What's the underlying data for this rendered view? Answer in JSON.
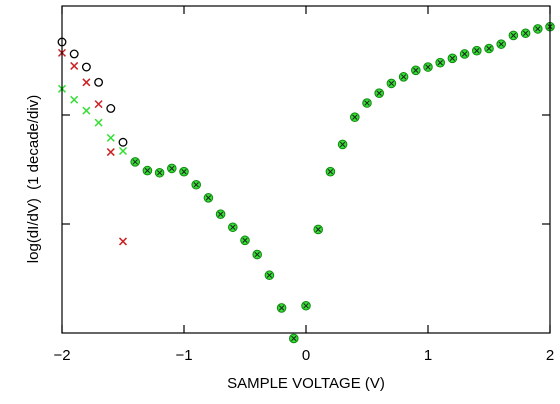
{
  "chart_data": {
    "type": "scatter",
    "xlabel": "SAMPLE VOLTAGE (V)",
    "ylabel": "log(dI/dV)  (1 decade/div)",
    "xlim": [
      -2,
      2
    ],
    "ylim": [
      0,
      3
    ],
    "x_ticks": [
      -2,
      -1,
      0,
      1,
      2
    ],
    "x_tick_labels": [
      "−2",
      "−1",
      "0",
      "1",
      "2"
    ],
    "y_ticks": [
      1,
      2
    ],
    "grid": false,
    "colors": {
      "black": "#000000",
      "red": "#cc2222",
      "green": "#33dd33",
      "green_dark": "#118811"
    },
    "series": [
      {
        "marker": "open-circle",
        "color": "#000000",
        "x": [
          -2.0,
          -1.9,
          -1.8,
          -1.7,
          -1.6,
          -1.5
        ],
        "y": [
          2.67,
          2.56,
          2.44,
          2.3,
          2.06,
          1.75
        ]
      },
      {
        "marker": "cross",
        "color": "#cc2222",
        "x": [
          -2.0,
          -1.9,
          -1.8,
          -1.7,
          -1.6,
          -1.5
        ],
        "y": [
          2.57,
          2.45,
          2.3,
          2.1,
          1.66,
          0.84
        ]
      },
      {
        "marker": "cross",
        "color": "#33dd33",
        "x": [
          -2.0,
          -1.9,
          -1.8,
          -1.7,
          -1.6,
          -1.5
        ],
        "y": [
          2.24,
          2.14,
          2.04,
          1.93,
          1.79,
          1.67
        ]
      },
      {
        "marker": "filled-circle-cross",
        "color": "#33dd33",
        "x": [
          -1.4,
          -1.3,
          -1.2,
          -1.1,
          -1.0,
          -0.9,
          -0.8,
          -0.7,
          -0.6,
          -0.5,
          -0.4,
          -0.3,
          -0.2,
          -0.1,
          0.0,
          0.1,
          0.2,
          0.3,
          0.4,
          0.5,
          0.6,
          0.7,
          0.8,
          0.9,
          1.0,
          1.1,
          1.2,
          1.3,
          1.4,
          1.5,
          1.6,
          1.7,
          1.8,
          1.9,
          2.0
        ],
        "y": [
          1.57,
          1.49,
          1.47,
          1.51,
          1.48,
          1.36,
          1.24,
          1.09,
          0.97,
          0.85,
          0.72,
          0.53,
          0.23,
          -0.05,
          0.25,
          0.95,
          1.48,
          1.73,
          1.98,
          2.11,
          2.2,
          2.29,
          2.35,
          2.41,
          2.44,
          2.48,
          2.52,
          2.56,
          2.59,
          2.61,
          2.65,
          2.73,
          2.75,
          2.79,
          2.81
        ]
      }
    ]
  }
}
